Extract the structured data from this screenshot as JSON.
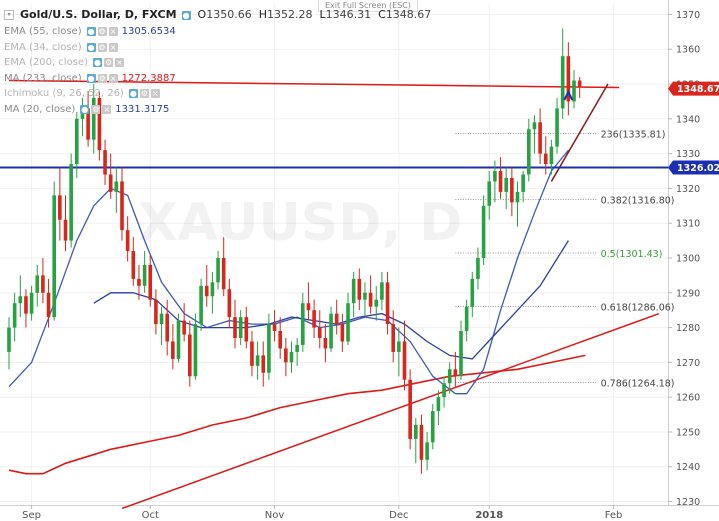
{
  "header": {
    "symbol": "Gold/U.S. Dollar, D, FXCM",
    "open_label": "O",
    "open": "1350.66",
    "high_label": "H",
    "high": "1352.28",
    "low_label": "L",
    "low": "1346.31",
    "close_label": "C",
    "close": "1348.67",
    "exit_fullscreen": "Exit Full Screen (ESC)"
  },
  "indicators": [
    {
      "label": "EMA (55, close)",
      "value": "1305.6534",
      "value_color": "#2a3fa0",
      "visible": true
    },
    {
      "label": "EMA (34, close)",
      "value": "",
      "value_color": "",
      "visible": false
    },
    {
      "label": "EMA (200, close)",
      "value": "",
      "value_color": "",
      "visible": false
    },
    {
      "label": "MA (233, close)",
      "value": "1272.3887",
      "value_color": "#e01818",
      "visible": true
    },
    {
      "label": "Ichimoku (9, 26, 52, 26)",
      "value": "",
      "value_color": "",
      "visible": false
    },
    {
      "label": "MA (20, close)",
      "value": "1331.3175",
      "value_color": "#2a3fa0",
      "visible": true
    }
  ],
  "colors": {
    "bull": "#26a242",
    "bear": "#d9261c",
    "hline": "#1b2fb5",
    "trend": "#e01818",
    "channel": "#8b1a1a",
    "ma20": "#3f5ab8",
    "ema55": "#2a3fa0",
    "ma233": "#e01818",
    "fib": "#777777",
    "arrow": "#1b2fb5"
  },
  "chart_data": {
    "type": "candlestick",
    "ylim": [
      1229,
      1373
    ],
    "y_ticks": [
      1230,
      1240,
      1250,
      1260,
      1270,
      1280,
      1290,
      1300,
      1310,
      1320,
      1330,
      1340,
      1350,
      1360,
      1370
    ],
    "x_labels": [
      {
        "label": "Sep",
        "index": 4
      },
      {
        "label": "Oct",
        "index": 25
      },
      {
        "label": "Nov",
        "index": 47
      },
      {
        "label": "Dec",
        "index": 69
      },
      {
        "label": "2018",
        "index": 85
      },
      {
        "label": "Feb",
        "index": 107
      }
    ],
    "candles": [
      [
        1273,
        1283,
        1268,
        1280
      ],
      [
        1280,
        1290,
        1276,
        1287
      ],
      [
        1287,
        1295,
        1283,
        1289
      ],
      [
        1289,
        1291,
        1280,
        1284
      ],
      [
        1284,
        1292,
        1282,
        1290
      ],
      [
        1290,
        1298,
        1286,
        1295
      ],
      [
        1295,
        1300,
        1287,
        1290
      ],
      [
        1290,
        1294,
        1280,
        1283
      ],
      [
        1283,
        1322,
        1282,
        1318
      ],
      [
        1318,
        1326,
        1305,
        1311
      ],
      [
        1311,
        1318,
        1302,
        1305
      ],
      [
        1305,
        1330,
        1303,
        1327
      ],
      [
        1327,
        1342,
        1323,
        1340
      ],
      [
        1340,
        1346,
        1335,
        1343
      ],
      [
        1343,
        1348,
        1332,
        1334
      ],
      [
        1334,
        1350,
        1330,
        1346
      ],
      [
        1346,
        1348,
        1328,
        1331
      ],
      [
        1331,
        1334,
        1321,
        1324
      ],
      [
        1324,
        1330,
        1317,
        1319
      ],
      [
        1319,
        1326,
        1313,
        1322
      ],
      [
        1322,
        1326,
        1305,
        1308
      ],
      [
        1308,
        1312,
        1299,
        1302
      ],
      [
        1302,
        1306,
        1292,
        1294
      ],
      [
        1294,
        1298,
        1288,
        1292
      ],
      [
        1292,
        1302,
        1290,
        1298
      ],
      [
        1298,
        1301,
        1286,
        1288
      ],
      [
        1288,
        1291,
        1278,
        1281
      ],
      [
        1281,
        1286,
        1275,
        1284
      ],
      [
        1284,
        1288,
        1272,
        1276
      ],
      [
        1276,
        1281,
        1268,
        1271
      ],
      [
        1271,
        1284,
        1270,
        1282
      ],
      [
        1282,
        1287,
        1276,
        1278
      ],
      [
        1278,
        1282,
        1263,
        1266
      ],
      [
        1266,
        1284,
        1265,
        1281
      ],
      [
        1281,
        1294,
        1279,
        1292
      ],
      [
        1292,
        1298,
        1286,
        1289
      ],
      [
        1289,
        1296,
        1284,
        1293
      ],
      [
        1293,
        1302,
        1291,
        1300
      ],
      [
        1300,
        1306,
        1289,
        1291
      ],
      [
        1291,
        1294,
        1280,
        1283
      ],
      [
        1283,
        1288,
        1274,
        1277
      ],
      [
        1277,
        1285,
        1275,
        1283
      ],
      [
        1283,
        1286,
        1274,
        1276
      ],
      [
        1276,
        1279,
        1266,
        1269
      ],
      [
        1269,
        1276,
        1265,
        1272
      ],
      [
        1272,
        1276,
        1263,
        1267
      ],
      [
        1267,
        1284,
        1265,
        1281
      ],
      [
        1281,
        1285,
        1276,
        1279
      ],
      [
        1279,
        1283,
        1271,
        1274
      ],
      [
        1274,
        1277,
        1266,
        1270
      ],
      [
        1270,
        1276,
        1267,
        1273
      ],
      [
        1273,
        1277,
        1269,
        1275
      ],
      [
        1275,
        1290,
        1273,
        1287
      ],
      [
        1287,
        1293,
        1282,
        1285
      ],
      [
        1285,
        1288,
        1277,
        1280
      ],
      [
        1280,
        1285,
        1274,
        1277
      ],
      [
        1277,
        1281,
        1270,
        1274
      ],
      [
        1274,
        1286,
        1273,
        1284
      ],
      [
        1284,
        1288,
        1278,
        1281
      ],
      [
        1281,
        1284,
        1273,
        1276
      ],
      [
        1276,
        1290,
        1275,
        1287
      ],
      [
        1287,
        1296,
        1283,
        1294
      ],
      [
        1294,
        1297,
        1285,
        1288
      ],
      [
        1288,
        1293,
        1283,
        1290
      ],
      [
        1290,
        1295,
        1284,
        1286
      ],
      [
        1286,
        1292,
        1282,
        1288
      ],
      [
        1288,
        1296,
        1285,
        1293
      ],
      [
        1293,
        1296,
        1278,
        1281
      ],
      [
        1281,
        1285,
        1270,
        1273
      ],
      [
        1273,
        1280,
        1266,
        1276
      ],
      [
        1276,
        1282,
        1262,
        1265
      ],
      [
        1265,
        1268,
        1245,
        1248
      ],
      [
        1248,
        1254,
        1241,
        1252
      ],
      [
        1252,
        1255,
        1238,
        1242
      ],
      [
        1242,
        1250,
        1239,
        1247
      ],
      [
        1247,
        1258,
        1245,
        1256
      ],
      [
        1256,
        1262,
        1252,
        1260
      ],
      [
        1260,
        1266,
        1257,
        1264
      ],
      [
        1264,
        1270,
        1261,
        1268
      ],
      [
        1268,
        1273,
        1263,
        1266
      ],
      [
        1266,
        1282,
        1265,
        1279
      ],
      [
        1279,
        1288,
        1276,
        1286
      ],
      [
        1286,
        1296,
        1283,
        1294
      ],
      [
        1294,
        1303,
        1291,
        1300
      ],
      [
        1300,
        1318,
        1298,
        1315
      ],
      [
        1315,
        1325,
        1311,
        1322
      ],
      [
        1322,
        1328,
        1316,
        1325
      ],
      [
        1325,
        1329,
        1317,
        1319
      ],
      [
        1319,
        1326,
        1314,
        1323
      ],
      [
        1323,
        1326,
        1312,
        1316
      ],
      [
        1316,
        1322,
        1309,
        1319
      ],
      [
        1319,
        1325,
        1316,
        1324
      ],
      [
        1324,
        1340,
        1322,
        1337
      ],
      [
        1337,
        1341,
        1330,
        1339
      ],
      [
        1339,
        1343,
        1327,
        1330
      ],
      [
        1330,
        1335,
        1324,
        1327
      ],
      [
        1327,
        1334,
        1324,
        1332
      ],
      [
        1332,
        1346,
        1330,
        1343
      ],
      [
        1343,
        1366,
        1340,
        1358
      ],
      [
        1358,
        1362,
        1341,
        1345
      ],
      [
        1345,
        1354,
        1343,
        1351
      ],
      [
        1351,
        1352,
        1346,
        1349
      ]
    ],
    "last_price": 1348.67,
    "horizontal_level": 1326.02,
    "fibonacci": [
      {
        "label": "236",
        "value": 1335.81,
        "text": "(1335.81)",
        "color": "#444444"
      },
      {
        "label": "0.382",
        "value": 1316.8,
        "text": "(1316.80)",
        "color": "#444444"
      },
      {
        "label": "0.5",
        "value": 1301.43,
        "text": "(1301.43)",
        "color": "#3c9a3c"
      },
      {
        "label": "0.618",
        "value": 1286.06,
        "text": "(1286.06)",
        "color": "#444444"
      },
      {
        "label": "0.786",
        "value": 1264.18,
        "text": "(1264.18)",
        "color": "#444444"
      }
    ],
    "ma20": [
      [
        0,
        1263
      ],
      [
        4,
        1270
      ],
      [
        8,
        1287
      ],
      [
        12,
        1305
      ],
      [
        15,
        1315
      ],
      [
        18,
        1320
      ],
      [
        21,
        1318
      ],
      [
        24,
        1305
      ],
      [
        27,
        1293
      ],
      [
        31,
        1284
      ],
      [
        35,
        1280
      ],
      [
        39,
        1282
      ],
      [
        43,
        1281
      ],
      [
        47,
        1281
      ],
      [
        51,
        1283
      ],
      [
        55,
        1280
      ],
      [
        59,
        1281
      ],
      [
        63,
        1283
      ],
      [
        67,
        1282
      ],
      [
        71,
        1276
      ],
      [
        75,
        1266
      ],
      [
        79,
        1261
      ],
      [
        81,
        1261
      ],
      [
        84,
        1268
      ],
      [
        87,
        1285
      ],
      [
        90,
        1300
      ],
      [
        93,
        1313
      ],
      [
        96,
        1325
      ],
      [
        99,
        1331
      ]
    ],
    "ema55": [
      [
        15,
        1287
      ],
      [
        18,
        1290
      ],
      [
        22,
        1290
      ],
      [
        26,
        1288
      ],
      [
        30,
        1282
      ],
      [
        34,
        1280
      ],
      [
        38,
        1280
      ],
      [
        42,
        1280
      ],
      [
        46,
        1281
      ],
      [
        50,
        1283
      ],
      [
        54,
        1282
      ],
      [
        58,
        1281
      ],
      [
        62,
        1283
      ],
      [
        66,
        1284
      ],
      [
        70,
        1281
      ],
      [
        74,
        1276
      ],
      [
        78,
        1272
      ],
      [
        82,
        1271
      ],
      [
        86,
        1278
      ],
      [
        90,
        1285
      ],
      [
        94,
        1292
      ],
      [
        99,
        1305
      ]
    ],
    "ma233": [
      [
        0,
        1239
      ],
      [
        3,
        1238
      ],
      [
        6,
        1238
      ],
      [
        10,
        1241
      ],
      [
        14,
        1243
      ],
      [
        18,
        1245
      ],
      [
        24,
        1247
      ],
      [
        30,
        1249
      ],
      [
        36,
        1252
      ],
      [
        42,
        1254
      ],
      [
        48,
        1257
      ],
      [
        54,
        1259
      ],
      [
        60,
        1261
      ],
      [
        66,
        1262
      ],
      [
        72,
        1264
      ],
      [
        78,
        1266
      ],
      [
        84,
        1267
      ],
      [
        90,
        1268
      ],
      [
        96,
        1270
      ],
      [
        102,
        1272
      ]
    ],
    "trend_desc": [
      [
        0,
        1351
      ],
      [
        108,
        1349
      ]
    ],
    "trend_asc": [
      [
        20,
        1228
      ],
      [
        115,
        1284
      ]
    ],
    "channel": [
      [
        96,
        1322
      ],
      [
        106,
        1350
      ]
    ],
    "arrow_at": [
      99,
      1346
    ]
  }
}
